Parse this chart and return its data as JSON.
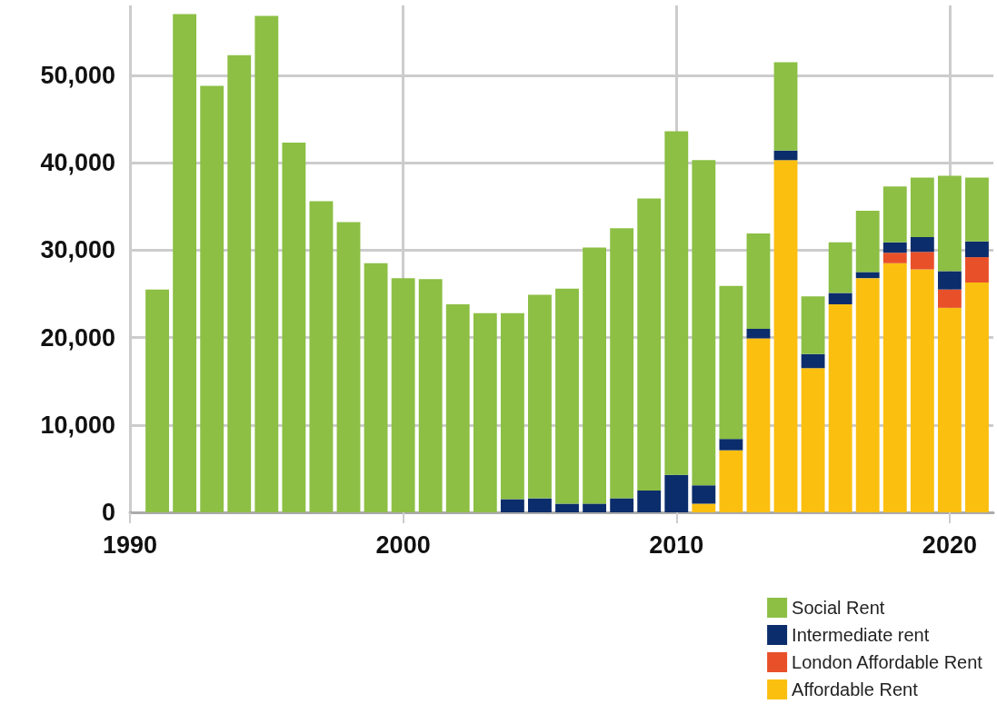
{
  "chart_data": {
    "type": "bar",
    "stacked": true,
    "x": [
      1991,
      1992,
      1993,
      1994,
      1995,
      1996,
      1997,
      1998,
      1999,
      2000,
      2001,
      2002,
      2003,
      2004,
      2005,
      2006,
      2007,
      2008,
      2009,
      2010,
      2011,
      2012,
      2013,
      2014,
      2015,
      2016,
      2017,
      2018,
      2019,
      2020,
      2021
    ],
    "series": [
      {
        "name": "Affordable Rent",
        "color": "#fbbf10",
        "values": [
          null,
          null,
          null,
          null,
          null,
          null,
          null,
          null,
          null,
          null,
          null,
          null,
          null,
          null,
          null,
          null,
          null,
          null,
          null,
          null,
          1000,
          7100,
          19900,
          40300,
          16500,
          23800,
          26800,
          28500,
          27800,
          23400,
          26300
        ]
      },
      {
        "name": "London Affordable Rent",
        "color": "#e8502a",
        "values": [
          null,
          null,
          null,
          null,
          null,
          null,
          null,
          null,
          null,
          null,
          null,
          null,
          null,
          null,
          null,
          null,
          null,
          null,
          null,
          null,
          null,
          null,
          null,
          null,
          null,
          null,
          null,
          1200,
          2000,
          2100,
          2900
        ]
      },
      {
        "name": "Intermediate rent",
        "color": "#0b2d6b",
        "values": [
          null,
          null,
          null,
          null,
          null,
          null,
          null,
          null,
          null,
          null,
          null,
          null,
          null,
          1500,
          1600,
          1000,
          1000,
          1600,
          2500,
          4300,
          2100,
          1300,
          1100,
          1100,
          1600,
          1300,
          700,
          1200,
          1700,
          2100,
          1800
        ]
      },
      {
        "name": "Social Rent",
        "color": "#8cbf44",
        "values": [
          25500,
          57000,
          48800,
          52300,
          56800,
          42300,
          35600,
          33200,
          28500,
          26800,
          26700,
          23800,
          22800,
          21300,
          23300,
          24600,
          29300,
          30900,
          33400,
          39300,
          37200,
          17500,
          10900,
          10100,
          6600,
          5800,
          7000,
          6400,
          6800,
          10900,
          7300
        ]
      }
    ],
    "xlim": [
      1990,
      2021.6
    ],
    "xticks": [
      1990,
      2000,
      2010,
      2020
    ],
    "ylim": [
      0,
      58000
    ],
    "yticks": [
      0,
      {
        "value": 10000,
        "label": "10,000"
      },
      {
        "value": 20000,
        "label": "20,000"
      },
      {
        "value": 30000,
        "label": "30,000"
      },
      {
        "value": 40000,
        "label": "40,000"
      },
      {
        "value": 50000,
        "label": "50,000"
      }
    ],
    "grid": true,
    "legend": "bottom right"
  }
}
